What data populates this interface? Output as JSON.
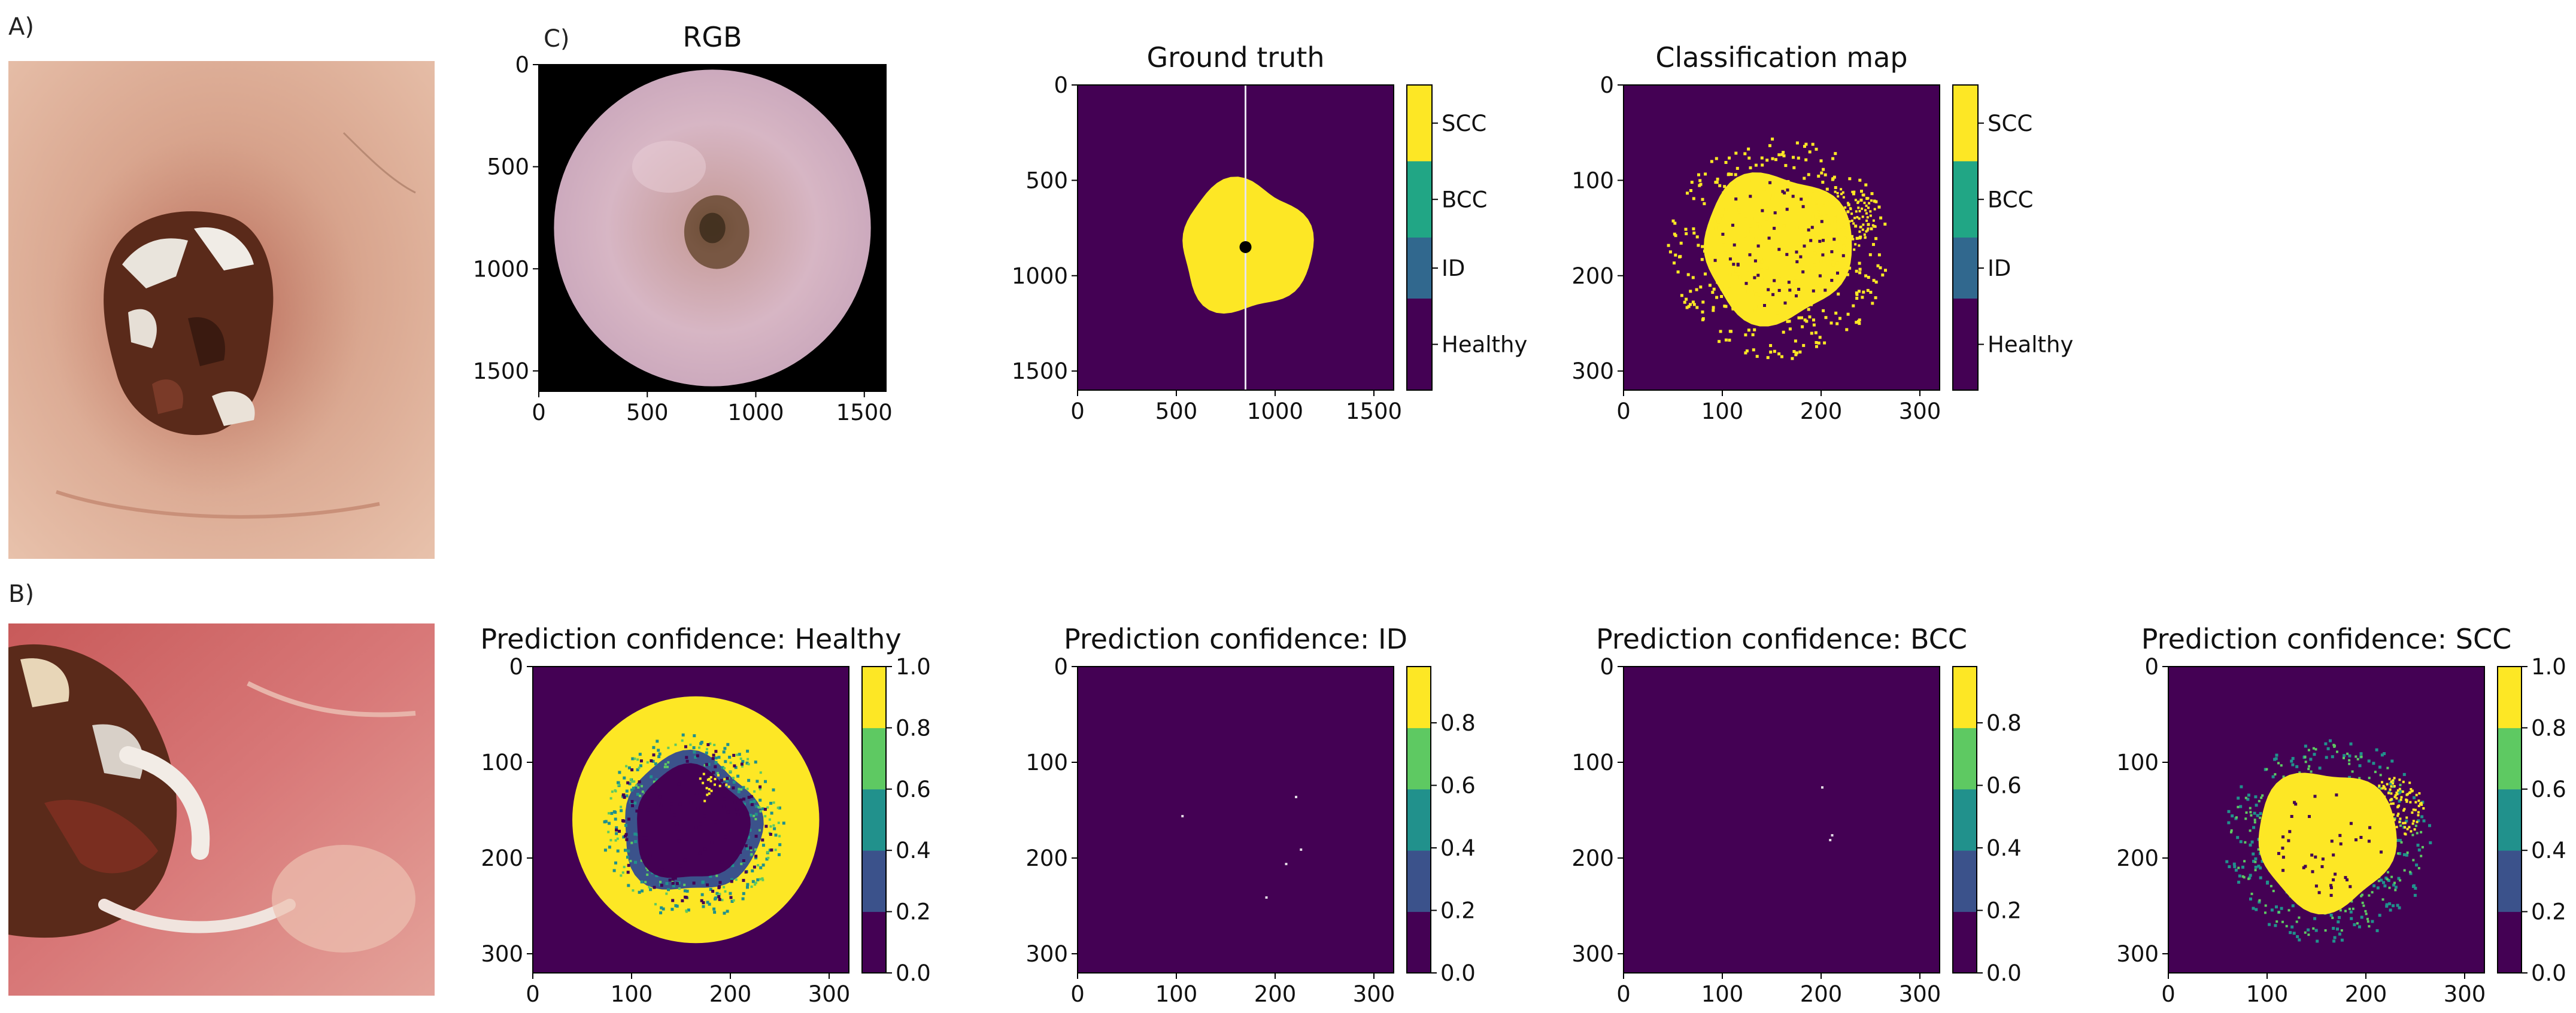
{
  "panel_labels": {
    "a": "A)",
    "b": "B)",
    "c": "C)"
  },
  "colors": {
    "viridis": [
      "#440154",
      "#3b528b",
      "#21918c",
      "#5ec962",
      "#fde725"
    ],
    "class_colors": {
      "Healthy": "#440154",
      "ID": "#31688e",
      "BCC": "#21a685",
      "SCC": "#fde725"
    },
    "background": "#ffffff",
    "photo_skin": "#d9a58d",
    "lesion_crust": "#5a2a1a"
  },
  "chart_data": [
    {
      "id": "rgb",
      "type": "image",
      "title": "RGB",
      "xlim": [
        0,
        1600
      ],
      "ylim": [
        1600,
        0
      ],
      "xticks": [
        0,
        500,
        1000,
        1500
      ],
      "yticks": [
        0,
        500,
        1000,
        1500
      ],
      "content": "circular dermoscopy field of view on black background"
    },
    {
      "id": "ground_truth",
      "type": "heatmap",
      "title": "Ground truth",
      "xlim": [
        0,
        1600
      ],
      "ylim": [
        1600,
        0
      ],
      "xticks": [
        0,
        500,
        1000,
        1500
      ],
      "yticks": [
        0,
        500,
        1000,
        1500
      ],
      "marker_point": [
        850,
        850
      ],
      "vertical_line_x": 850,
      "classes": [
        "Healthy",
        "ID",
        "BCC",
        "SCC"
      ],
      "regions": [
        {
          "class": "SCC",
          "center": [
            850,
            850
          ],
          "approx_radius": 330
        }
      ],
      "colorbar": {
        "type": "categorical",
        "labels": [
          "SCC",
          "BCC",
          "ID",
          "Healthy"
        ]
      }
    },
    {
      "id": "classification_map",
      "type": "heatmap",
      "title": "Classification map",
      "xlim": [
        0,
        320
      ],
      "ylim": [
        320,
        0
      ],
      "xticks": [
        0,
        100,
        200,
        300
      ],
      "yticks": [
        0,
        100,
        200,
        300
      ],
      "classes": [
        "Healthy",
        "ID",
        "BCC",
        "SCC"
      ],
      "regions": [
        {
          "class": "SCC",
          "center": [
            155,
            170
          ],
          "approx_radius": 75
        }
      ],
      "colorbar": {
        "type": "categorical",
        "labels": [
          "SCC",
          "BCC",
          "ID",
          "Healthy"
        ]
      }
    },
    {
      "id": "conf_healthy",
      "type": "heatmap",
      "title": "Prediction confidence: Healthy",
      "xlim": [
        0,
        320
      ],
      "ylim": [
        320,
        0
      ],
      "xticks": [
        0,
        100,
        200,
        300
      ],
      "yticks": [
        0,
        100,
        200,
        300
      ],
      "fov_circle": {
        "center": [
          165,
          160
        ],
        "radius": 125,
        "value": 1.0
      },
      "low_region": {
        "center": [
          160,
          165
        ],
        "approx_radius": 70,
        "value": 0.0
      },
      "colorbar": {
        "type": "continuous",
        "ticks": [
          "1.0",
          "0.8",
          "0.6",
          "0.4",
          "0.2",
          "0.0"
        ],
        "range": [
          0.0,
          1.0
        ]
      }
    },
    {
      "id": "conf_id",
      "type": "heatmap",
      "title": "Prediction confidence: ID",
      "xlim": [
        0,
        320
      ],
      "ylim": [
        320,
        0
      ],
      "xticks": [
        0,
        100,
        200,
        300
      ],
      "yticks": [
        0,
        100,
        200,
        300
      ],
      "background_value": 0.0,
      "sparse_points": [
        [
          220,
          135
        ],
        [
          105,
          155
        ],
        [
          225,
          190
        ],
        [
          210,
          205
        ],
        [
          190,
          240
        ]
      ],
      "colorbar": {
        "type": "continuous",
        "ticks": [
          "0.8",
          "0.6",
          "0.4",
          "0.2",
          "0.0"
        ],
        "range": [
          0.0,
          1.0
        ]
      }
    },
    {
      "id": "conf_bcc",
      "type": "heatmap",
      "title": "Prediction confidence: BCC",
      "xlim": [
        0,
        320
      ],
      "ylim": [
        320,
        0
      ],
      "xticks": [
        0,
        100,
        200,
        300
      ],
      "yticks": [
        0,
        100,
        200,
        300
      ],
      "background_value": 0.0,
      "sparse_points": [
        [
          200,
          125
        ],
        [
          210,
          175
        ],
        [
          208,
          180
        ]
      ],
      "colorbar": {
        "type": "continuous",
        "ticks": [
          "0.8",
          "0.6",
          "0.4",
          "0.2",
          "0.0"
        ],
        "range": [
          0.0,
          1.0
        ]
      }
    },
    {
      "id": "conf_scc",
      "type": "heatmap",
      "title": "Prediction confidence: SCC",
      "xlim": [
        0,
        320
      ],
      "ylim": [
        320,
        0
      ],
      "xticks": [
        0,
        100,
        200,
        300
      ],
      "yticks": [
        0,
        100,
        200,
        300
      ],
      "high_region": {
        "center": [
          160,
          180
        ],
        "approx_radius": 70,
        "value": 1.0
      },
      "colorbar": {
        "type": "continuous",
        "ticks": [
          "1.0",
          "0.8",
          "0.6",
          "0.4",
          "0.2",
          "0.0"
        ],
        "range": [
          0.0,
          1.0
        ]
      }
    }
  ]
}
